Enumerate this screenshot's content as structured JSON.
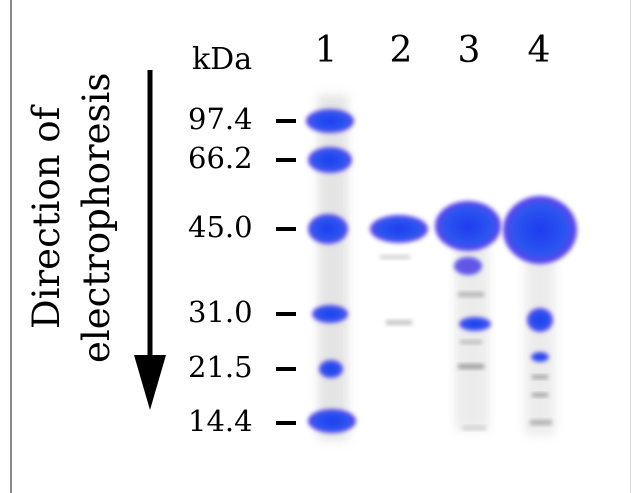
{
  "figure": {
    "direction_label": [
      "Direction of",
      "electrophoresis"
    ],
    "unit_label": "kDa",
    "lanes": [
      "1",
      "2",
      "3",
      "4"
    ],
    "markers": [
      "97.4",
      "66.2",
      "45.0",
      "31.0",
      "21.5",
      "14.4"
    ],
    "colors": {
      "band_core": "#2340e8",
      "band_glow": "#6a3cf0",
      "smear": "#bdbdbd",
      "text": "#000000"
    }
  }
}
